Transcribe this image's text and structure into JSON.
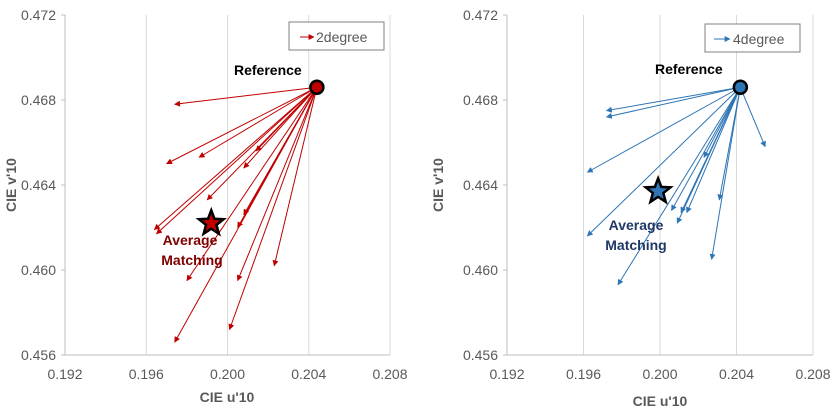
{
  "chart_data": [
    {
      "type": "scatter",
      "title": "",
      "xlabel": "CIE u'10",
      "ylabel": "CIE v'10",
      "xlim": [
        0.192,
        0.208
      ],
      "ylim": [
        0.456,
        0.472
      ],
      "xticks": [
        "0.192",
        "0.196",
        "0.200",
        "0.204",
        "0.208"
      ],
      "yticks": [
        "0.456",
        "0.460",
        "0.464",
        "0.468",
        "0.472"
      ],
      "grid": "vertical",
      "legend": {
        "label": "2degree",
        "placement": "top-right"
      },
      "color": "#c00000",
      "average_color": "#7f0000",
      "reference": {
        "label": "Reference",
        "u": 0.2044,
        "v": 0.4686
      },
      "average": {
        "label_line1": "Average",
        "label_line2": "Matching",
        "u": 0.1992,
        "v": 0.4622
      },
      "matches": [
        {
          "u": 0.1974,
          "v": 0.4678
        },
        {
          "u": 0.197,
          "v": 0.465
        },
        {
          "u": 0.1986,
          "v": 0.4653
        },
        {
          "u": 0.199,
          "v": 0.4633
        },
        {
          "u": 0.2008,
          "v": 0.4648
        },
        {
          "u": 0.2014,
          "v": 0.4656
        },
        {
          "u": 0.1964,
          "v": 0.4619
        },
        {
          "u": 0.1965,
          "v": 0.4617
        },
        {
          "u": 0.2005,
          "v": 0.462
        },
        {
          "u": 0.2008,
          "v": 0.4626
        },
        {
          "u": 0.198,
          "v": 0.4595
        },
        {
          "u": 0.2005,
          "v": 0.4595
        },
        {
          "u": 0.2023,
          "v": 0.4602
        },
        {
          "u": 0.1974,
          "v": 0.4566
        },
        {
          "u": 0.2001,
          "v": 0.4572
        }
      ]
    },
    {
      "type": "scatter",
      "title": "",
      "xlabel": "CIE u'10",
      "ylabel": "CIE v'10",
      "xlim": [
        0.192,
        0.208
      ],
      "ylim": [
        0.456,
        0.472
      ],
      "xticks": [
        "0.192",
        "0.196",
        "0.200",
        "0.204",
        "0.208"
      ],
      "yticks": [
        "0.456",
        "0.460",
        "0.464",
        "0.468",
        "0.472"
      ],
      "grid": "vertical",
      "legend": {
        "label": "4degree",
        "placement": "top-right"
      },
      "color": "#2e75b6",
      "average_color": "#1f3864",
      "reference": {
        "label": "Reference",
        "u": 0.2042,
        "v": 0.4686
      },
      "average": {
        "label_line1": "Average",
        "label_line2": "Matching",
        "u": 0.1999,
        "v": 0.4637
      },
      "matches": [
        {
          "u": 0.1972,
          "v": 0.4675
        },
        {
          "u": 0.1972,
          "v": 0.4672
        },
        {
          "u": 0.1962,
          "v": 0.4646
        },
        {
          "u": 0.2023,
          "v": 0.4653
        },
        {
          "u": 0.2055,
          "v": 0.4658
        },
        {
          "u": 0.2031,
          "v": 0.4633
        },
        {
          "u": 0.1962,
          "v": 0.4616
        },
        {
          "u": 0.2009,
          "v": 0.4622
        },
        {
          "u": 0.2011,
          "v": 0.4627
        },
        {
          "u": 0.2006,
          "v": 0.4628
        },
        {
          "u": 0.2014,
          "v": 0.4627
        },
        {
          "u": 0.2027,
          "v": 0.4605
        },
        {
          "u": 0.1978,
          "v": 0.4593
        }
      ]
    }
  ]
}
